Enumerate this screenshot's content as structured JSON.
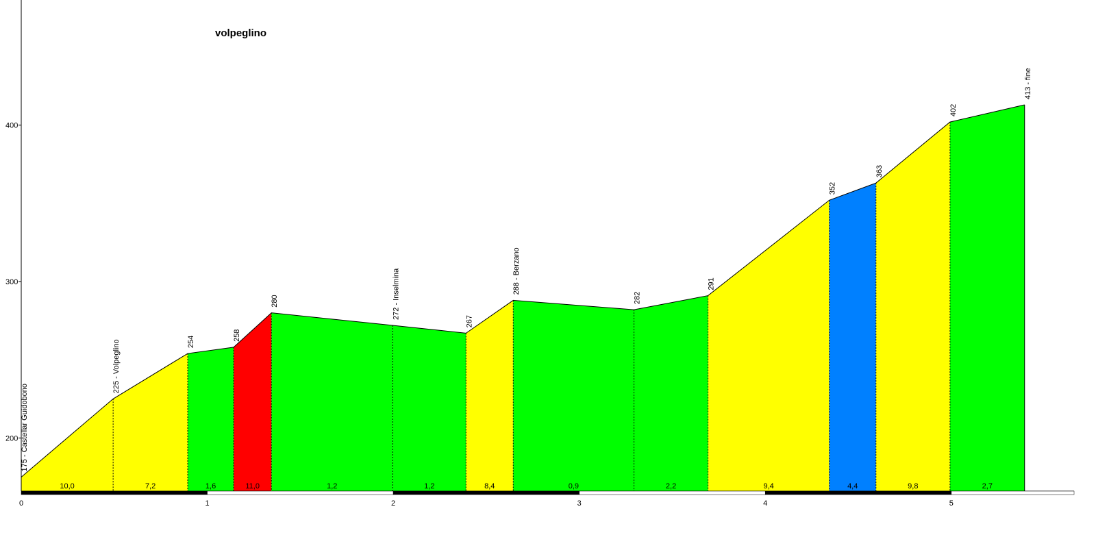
{
  "chart_data": {
    "type": "elevation",
    "title": "volpeglino",
    "x": [
      0,
      0.494,
      0.895,
      1.142,
      1.345,
      1.997,
      2.391,
      2.645,
      3.294,
      3.692,
      4.344,
      4.595,
      4.993,
      5.394
    ],
    "values": [
      175,
      225,
      254,
      258,
      280,
      272,
      267,
      288,
      282,
      291,
      352,
      363,
      402,
      413
    ],
    "point_labels": [
      "175 - Castellar Guidobono",
      "225 - Volpeglino",
      "254",
      "258",
      "280",
      "272 - Inselmina",
      "267",
      "288 - Berzano",
      "282",
      "291",
      "352",
      "363",
      "402",
      "413 - fine"
    ],
    "segments": {
      "values": [
        10.0,
        7.2,
        1.6,
        11.0,
        1.2,
        1.2,
        8.4,
        0.9,
        2.2,
        9.4,
        4.4,
        9.8,
        2.7
      ],
      "value_labels": [
        "10,0",
        "7,2",
        "1,6",
        "11,0",
        "1,2",
        "1,2",
        "8,4",
        "0,9",
        "2,2",
        "9,4",
        "4,4",
        "9,8",
        "2,7"
      ],
      "colors": [
        "#ffff00",
        "#ffff00",
        "#00ff00",
        "#ff0000",
        "#00ff00",
        "#00ff00",
        "#ffff00",
        "#00ff00",
        "#00ff00",
        "#ffff00",
        "#0080ff",
        "#ffff00",
        "#00ff00"
      ]
    },
    "xlim": [
      0,
      5.66
    ],
    "ylim": [
      166,
      480
    ],
    "xticks": [
      0,
      1,
      2,
      3,
      4,
      5
    ],
    "yticks": [
      200,
      300,
      400
    ]
  }
}
